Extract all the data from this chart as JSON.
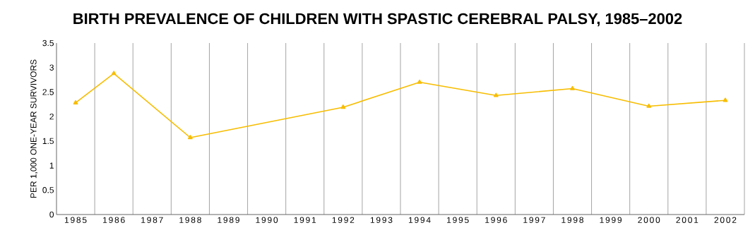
{
  "chart_data": {
    "type": "line",
    "title": "BIRTH PREVALENCE OF CHILDREN WITH SPASTIC CEREBRAL PALSY, 1985–2002",
    "ylabel": "PER 1,000 ONE-YEAR SURVIVORS",
    "x": [
      1985,
      1986,
      1988,
      1992,
      1994,
      1996,
      1998,
      2000,
      2002
    ],
    "series": [
      {
        "color": "#f7bd00",
        "values": [
          2.28,
          2.88,
          1.57,
          2.19,
          2.7,
          2.43,
          2.57,
          2.21,
          2.33
        ]
      }
    ],
    "xlim": [
      1984.5,
      2002.5
    ],
    "xticks": [
      1985,
      1986,
      1987,
      1988,
      1989,
      1990,
      1991,
      1992,
      1993,
      1994,
      1995,
      1996,
      1997,
      1998,
      1999,
      2000,
      2001,
      2002
    ],
    "ylim": [
      0,
      3.5
    ],
    "yticks": [
      0,
      0.5,
      1,
      1.5,
      2,
      2.5,
      3,
      3.5
    ],
    "grid": "x",
    "marker": "triangle",
    "line_style": "solid"
  }
}
